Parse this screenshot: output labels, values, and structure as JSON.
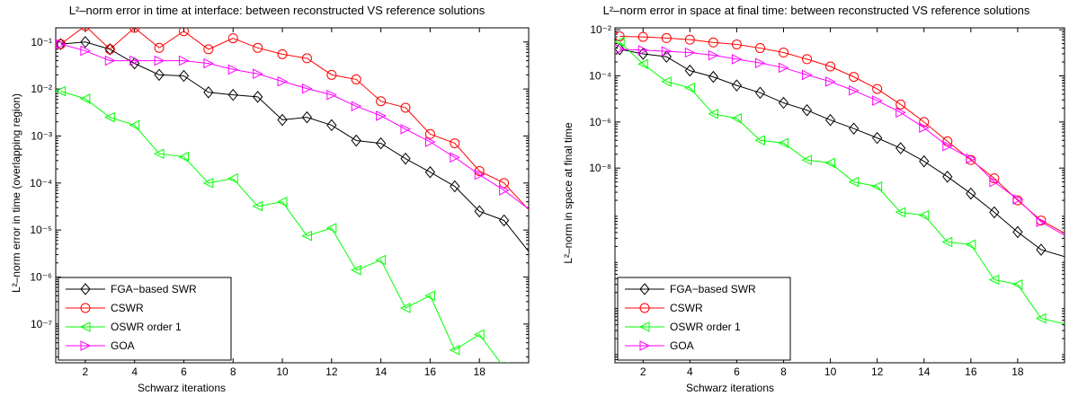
{
  "chart_data": [
    {
      "type": "line",
      "title": "L²–norm error in time at interface: between reconstructed VS reference solutions",
      "xlabel": "Schwarz iterations",
      "ylabel": "L²–norm error in time (overlapping region)",
      "yscale": "log",
      "xlim": [
        0.8,
        20
      ],
      "ylim": [
        1.5e-08,
        0.2
      ],
      "xticks": [
        "2",
        "4",
        "6",
        "8",
        "10",
        "12",
        "14",
        "16",
        "18"
      ],
      "yticks": [
        "10⁻⁷",
        "10⁻⁶",
        "10⁻⁵",
        "10⁻⁴",
        "10⁻³",
        "10⁻²",
        "10⁻¹"
      ],
      "legend_position": "bottom-left",
      "series": [
        {
          "name": "FGA−based SWR",
          "color": "#000000",
          "marker": "diamond",
          "x": [
            1,
            2,
            3,
            4,
            5,
            6,
            7,
            8,
            9,
            10,
            11,
            12,
            13,
            14,
            15,
            16,
            17,
            18,
            19,
            20
          ],
          "y": [
            0.09,
            0.1,
            0.07,
            0.035,
            0.02,
            0.019,
            0.0085,
            0.0075,
            0.0068,
            0.0022,
            0.0025,
            0.0017,
            0.0008,
            0.0007,
            0.00033,
            0.00017,
            8.5e-05,
            2.5e-05,
            1.6e-05,
            3.5e-06
          ]
        },
        {
          "name": "CSWR",
          "color": "#ff0000",
          "marker": "circle",
          "x": [
            1,
            2,
            3,
            4,
            5,
            6,
            7,
            8,
            9,
            10,
            11,
            12,
            13,
            14,
            15,
            16,
            17,
            18,
            19,
            20
          ],
          "y": [
            0.09,
            0.22,
            0.07,
            0.2,
            0.075,
            0.17,
            0.07,
            0.12,
            0.075,
            0.055,
            0.045,
            0.02,
            0.016,
            0.0055,
            0.004,
            0.0011,
            0.0007,
            0.00018,
            0.0001,
            2.7e-05
          ]
        },
        {
          "name": "OSWR order 1",
          "color": "#00ff00",
          "marker": "triangle-left",
          "x": [
            1,
            2,
            3,
            4,
            5,
            6,
            7,
            8,
            9,
            10,
            11,
            12,
            13,
            14,
            15,
            16,
            17,
            18,
            19
          ],
          "y": [
            0.009,
            0.0062,
            0.0025,
            0.0017,
            0.00042,
            0.00036,
            0.0001,
            0.000125,
            3.2e-05,
            4e-05,
            7.5e-06,
            1.1e-05,
            1.4e-06,
            2.3e-06,
            2.2e-07,
            4e-07,
            2.8e-08,
            6e-08,
            1.2e-08
          ]
        },
        {
          "name": "GOA",
          "color": "#ff00ff",
          "marker": "triangle-right",
          "x": [
            1,
            2,
            3,
            4,
            5,
            6,
            7,
            8,
            9,
            10,
            11,
            12,
            13,
            14,
            15,
            16,
            17,
            18,
            19,
            20
          ],
          "y": [
            0.09,
            0.065,
            0.04,
            0.04,
            0.04,
            0.04,
            0.035,
            0.026,
            0.021,
            0.0145,
            0.0102,
            0.0075,
            0.0043,
            0.0027,
            0.0014,
            0.00075,
            0.00035,
            0.00015,
            7e-05,
            2.8e-05
          ]
        }
      ]
    },
    {
      "type": "line",
      "title": "L²–norm error in space at final time: between reconstructed VS reference solutions",
      "xlabel": "Schwarz iterations",
      "ylabel": "L²–norm in space at final time",
      "yscale": "log",
      "xlim": [
        0.8,
        20
      ],
      "ylim": [
        6e-09,
        0.11
      ],
      "xticks": [
        "2",
        "4",
        "6",
        "8",
        "10",
        "12",
        "14",
        "16",
        "18"
      ],
      "yticks": [
        "10⁻⁸",
        "10⁻⁶",
        "10⁻⁴",
        "10⁻²"
      ],
      "legend_position": "bottom-left",
      "series": [
        {
          "name": "FGA−based SWR",
          "color": "#000000",
          "marker": "diamond",
          "x": [
            1,
            2,
            3,
            4,
            5,
            6,
            7,
            8,
            9,
            10,
            11,
            12,
            13,
            14,
            15,
            16,
            17,
            18,
            19,
            20
          ],
          "y": [
            0.038,
            0.03,
            0.026,
            0.013,
            0.0095,
            0.0062,
            0.0043,
            0.0026,
            0.0018,
            0.0011,
            0.00072,
            0.00045,
            0.00027,
            0.00014,
            6.5e-05,
            2.8e-05,
            1.1e-05,
            4.1e-06,
            1.7e-06,
            1.2e-06
          ]
        },
        {
          "name": "CSWR",
          "color": "#ff0000",
          "marker": "circle",
          "x": [
            1,
            2,
            3,
            4,
            5,
            6,
            7,
            8,
            9,
            10,
            11,
            12,
            13,
            14,
            15,
            16,
            17,
            18,
            19,
            20
          ],
          "y": [
            0.072,
            0.07,
            0.066,
            0.061,
            0.053,
            0.048,
            0.04,
            0.032,
            0.023,
            0.016,
            0.0095,
            0.0052,
            0.0024,
            0.001,
            0.00038,
            0.00015,
            6e-05,
            2e-05,
            7.3e-06,
            3.9e-06
          ]
        },
        {
          "name": "OSWR order 1",
          "color": "#00ff00",
          "marker": "triangle-left",
          "x": [
            1,
            2,
            3,
            4,
            5,
            6,
            7,
            8,
            9,
            10,
            11,
            12,
            13,
            14,
            15,
            16,
            17,
            18,
            19,
            20
          ],
          "y": [
            0.055,
            0.018,
            0.0075,
            0.0055,
            0.0015,
            0.0012,
            0.0004,
            0.00035,
            0.00015,
            0.00013,
            5e-05,
            4e-05,
            1.1e-05,
            9.5e-06,
            2.5e-06,
            2.2e-06,
            3.8e-07,
            3e-07,
            5.5e-08,
            4.2e-08
          ]
        },
        {
          "name": "GOA",
          "color": "#ff00ff",
          "marker": "triangle-right",
          "x": [
            1,
            2,
            3,
            4,
            5,
            6,
            7,
            8,
            9,
            10,
            11,
            12,
            13,
            14,
            15,
            16,
            17,
            18,
            19,
            20
          ],
          "y": [
            0.038,
            0.036,
            0.034,
            0.032,
            0.028,
            0.023,
            0.019,
            0.015,
            0.0105,
            0.0075,
            0.0048,
            0.0029,
            0.0016,
            0.00075,
            0.0003,
            0.00016,
            5e-05,
            2.1e-05,
            6.8e-06,
            3.5e-06
          ]
        }
      ]
    }
  ]
}
